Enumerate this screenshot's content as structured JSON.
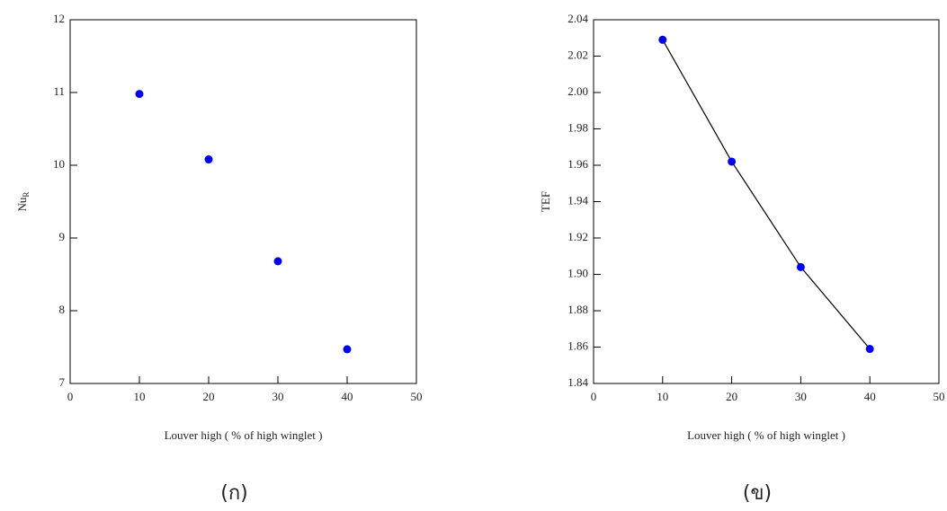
{
  "chart_data": [
    {
      "type": "scatter",
      "x_label": "Louver high ( % of high winglet )",
      "y_label": "Nu",
      "y_label_subscript": "R",
      "caption": "(ก)",
      "x": [
        10,
        20,
        30,
        40
      ],
      "values": [
        10.98,
        10.08,
        8.68,
        7.47
      ],
      "color": "#0000ee",
      "xlim": [
        0,
        50
      ],
      "xticks": [
        0,
        10,
        20,
        30,
        40,
        50
      ],
      "ylim": [
        7,
        12
      ],
      "yticks": [
        7,
        8,
        9,
        10,
        11,
        12
      ]
    },
    {
      "type": "line",
      "x_label": "Louver high ( % of high winglet )",
      "y_label": "TEF",
      "caption": "(ข)",
      "x": [
        10,
        20,
        30,
        40
      ],
      "values": [
        2.029,
        1.962,
        1.904,
        1.859
      ],
      "color": "#0000ee",
      "xlim": [
        0,
        50
      ],
      "xticks": [
        0,
        10,
        20,
        30,
        40,
        50
      ],
      "ylim": [
        1.84,
        2.04
      ],
      "yticks": [
        1.84,
        1.86,
        1.88,
        {
          "value": 1.9,
          "label": "1.90"
        },
        1.92,
        1.94,
        1.96,
        1.98,
        {
          "value": 2,
          "label": "2.00"
        },
        2.02,
        2.04
      ]
    }
  ]
}
